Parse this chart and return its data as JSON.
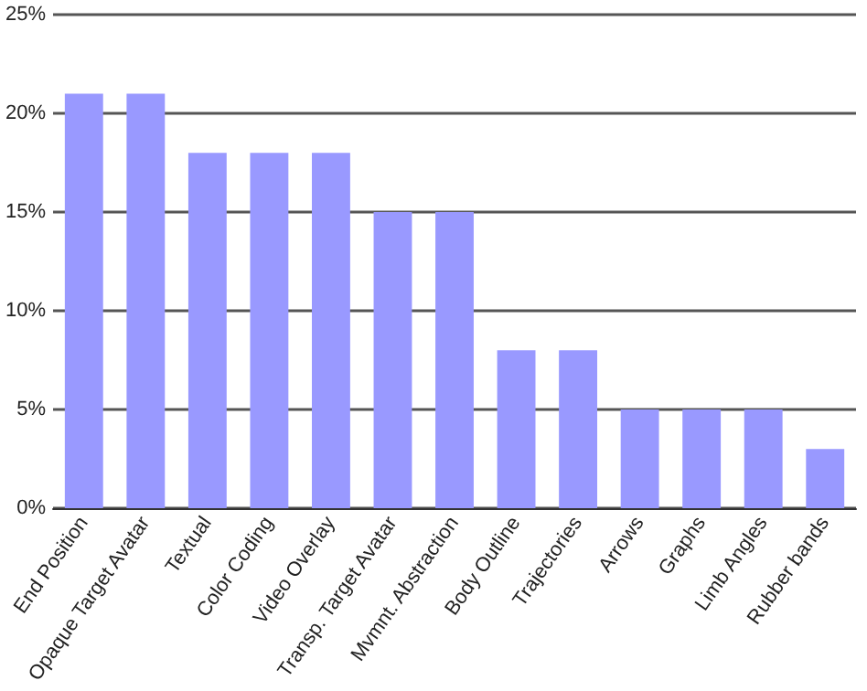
{
  "chart_data": {
    "type": "bar",
    "categories": [
      "End Position",
      "Opaque Target Avatar",
      "Textual",
      "Color Coding",
      "Video Overlay",
      "Transp. Target Avatar",
      "Mvmnt. Abstraction",
      "Body Outline",
      "Trajectories",
      "Arrows",
      "Graphs",
      "Limb Angles",
      "Rubber bands"
    ],
    "values": [
      21,
      21,
      18,
      18,
      18,
      15,
      15,
      8,
      8,
      5,
      5,
      5,
      3
    ],
    "color": "#9999ff",
    "ylim": [
      0,
      25
    ],
    "yticks": [
      {
        "value": 0,
        "label": "0%"
      },
      {
        "value": 5,
        "label": "5%"
      },
      {
        "value": 10,
        "label": "10%"
      },
      {
        "value": 15,
        "label": "15%"
      },
      {
        "value": 20,
        "label": "20%"
      },
      {
        "value": 25,
        "label": "25%"
      }
    ],
    "grid": "y"
  }
}
